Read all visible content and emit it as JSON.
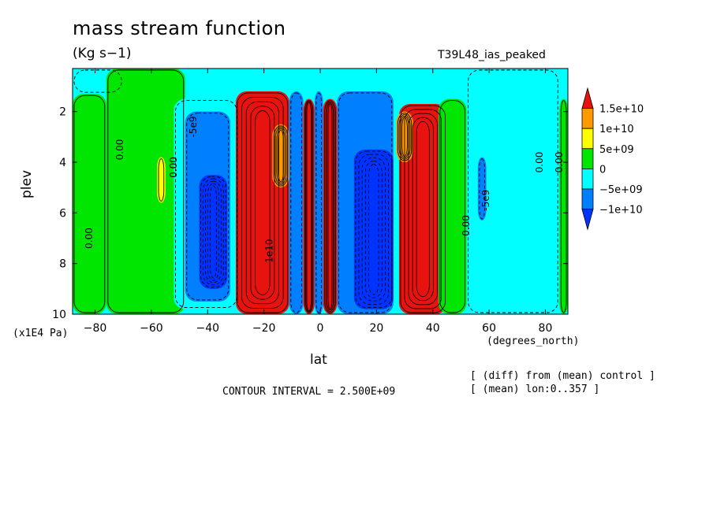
{
  "chart_data": {
    "type": "heatmap",
    "title": "mass stream function",
    "units": "(Kg s−1)",
    "experiment": "T39L48_ias_peaked",
    "xlabel": "lat",
    "x_units": "(degrees_north)",
    "ylabel": "plev",
    "y_units": "(x1E4 Pa)",
    "xlim": [
      -88,
      88
    ],
    "ylim": [
      10,
      0.3
    ],
    "y_inverted": true,
    "x_ticks": [
      -80,
      -60,
      -40,
      -20,
      0,
      20,
      40,
      60,
      80
    ],
    "x_tick_labels": [
      "−80",
      "−60",
      "−40",
      "−20",
      "0",
      "20",
      "40",
      "60",
      "80"
    ],
    "y_ticks": [
      2,
      4,
      6,
      8,
      10
    ],
    "contour_interval_text": "CONTOUR INTERVAL = 2.500E+09",
    "notes": [
      "[ (diff) from (mean) control ]",
      "[ (mean) lon:0..357 ]"
    ],
    "colorbar": {
      "labels": [
        "1.5e+10",
        "1e+10",
        "5e+09",
        "0",
        "−5e+09",
        "−1e+10"
      ],
      "colors": [
        "#e8130f",
        "#ff9900",
        "#ffff00",
        "#00e600",
        "#00ffff",
        "#0080ff",
        "#0033ff"
      ]
    },
    "contour_labels": [
      {
        "text": "0.00",
        "lat": -81,
        "plev": 7.0
      },
      {
        "text": "0.00",
        "lat": -70,
        "plev": 3.5
      },
      {
        "text": "0.00",
        "lat": -51,
        "plev": 4.2
      },
      {
        "text": "-5e9",
        "lat": -44,
        "plev": 2.6
      },
      {
        "text": "1e10",
        "lat": -17,
        "plev": 7.5
      },
      {
        "text": "0.00",
        "lat": 53,
        "plev": 6.5
      },
      {
        "text": "-5e9",
        "lat": 60,
        "plev": 5.5
      },
      {
        "text": "0.00",
        "lat": 79,
        "plev": 4.0
      },
      {
        "text": "0.00",
        "lat": 86,
        "plev": 4.0
      }
    ],
    "regions": [
      {
        "id": "green-sh-pole",
        "value": 2500000000.0,
        "color": "#00e600",
        "lat": [
          -88,
          -76
        ],
        "plev": [
          1.3,
          10
        ]
      },
      {
        "id": "cyan-sh-pole",
        "value": -2500000000.0,
        "color": "#00ffff",
        "lat": [
          -88,
          -70
        ],
        "plev": [
          0.3,
          1.3
        ]
      },
      {
        "id": "green-sh-mid",
        "value": 2500000000.0,
        "color": "#00e600",
        "lat": [
          -76,
          -48
        ],
        "plev": [
          0.3,
          10
        ]
      },
      {
        "id": "yellow-sh-blob",
        "value": 7500000000.0,
        "color": "#ffff00",
        "lat": [
          -58,
          -55
        ],
        "plev": [
          3.8,
          5.6
        ]
      },
      {
        "id": "cyan-sh-ferrel",
        "value": -2500000000.0,
        "color": "#00ffff",
        "lat": [
          -52,
          -29
        ],
        "plev": [
          1.5,
          9.8
        ]
      },
      {
        "id": "blue-sh-ferrel",
        "value": -7500000000.0,
        "color": "#0080ff",
        "lat": [
          -48,
          -32
        ],
        "plev": [
          2.0,
          9.5
        ]
      },
      {
        "id": "dkblue-sh-ferrel",
        "value": -12500000000.0,
        "color": "#0033ff",
        "lat": [
          -43,
          -33
        ],
        "plev": [
          4.5,
          9.0
        ]
      },
      {
        "id": "red-sh-hadley",
        "value": 12500000000.0,
        "color": "#e8130f",
        "lat": [
          -30,
          -11
        ],
        "plev": [
          1.2,
          10
        ]
      },
      {
        "id": "orange-sh-hadley",
        "value": 10000000000.0,
        "color": "#ff9900",
        "lat": [
          -17,
          -11
        ],
        "plev": [
          2.5,
          5.0
        ]
      },
      {
        "id": "blue-eq-1",
        "value": -7500000000.0,
        "color": "#0080ff",
        "lat": [
          -11,
          -6
        ],
        "plev": [
          1.2,
          10
        ]
      },
      {
        "id": "red-eq-1",
        "value": 12500000000.0,
        "color": "#e8130f",
        "lat": [
          -6,
          -2
        ],
        "plev": [
          1.5,
          10
        ]
      },
      {
        "id": "blue-eq-2",
        "value": -7500000000.0,
        "color": "#0080ff",
        "lat": [
          -2,
          1
        ],
        "plev": [
          1.2,
          10
        ]
      },
      {
        "id": "red-eq-2",
        "value": 12500000000.0,
        "color": "#e8130f",
        "lat": [
          1,
          6
        ],
        "plev": [
          1.5,
          10
        ]
      },
      {
        "id": "blue-nh-hadley",
        "value": -7500000000.0,
        "color": "#0080ff",
        "lat": [
          6,
          26
        ],
        "plev": [
          1.2,
          10
        ]
      },
      {
        "id": "dkblue-nh-hadley",
        "value": -12500000000.0,
        "color": "#0033ff",
        "lat": [
          12,
          26
        ],
        "plev": [
          3.5,
          9.8
        ]
      },
      {
        "id": "red-nh-ferrel",
        "value": 12500000000.0,
        "color": "#e8130f",
        "lat": [
          28,
          45
        ],
        "plev": [
          1.7,
          10
        ]
      },
      {
        "id": "orange-nh-ferrel",
        "value": 10000000000.0,
        "color": "#ff9900",
        "lat": [
          27,
          33
        ],
        "plev": [
          2.0,
          4.0
        ]
      },
      {
        "id": "green-nh-mid",
        "value": 2500000000.0,
        "color": "#00e600",
        "lat": [
          42,
          52
        ],
        "plev": [
          1.5,
          10
        ]
      },
      {
        "id": "cyan-nh-mid",
        "value": -2500000000.0,
        "color": "#00ffff",
        "lat": [
          52,
          85
        ],
        "plev": [
          0.3,
          10
        ]
      },
      {
        "id": "blue-nh-blob",
        "value": -7500000000.0,
        "color": "#0080ff",
        "lat": [
          56,
          59
        ],
        "plev": [
          3.8,
          6.3
        ]
      },
      {
        "id": "green-nh-pole",
        "value": 2500000000.0,
        "color": "#00e600",
        "lat": [
          85,
          88
        ],
        "plev": [
          1.5,
          10
        ]
      }
    ]
  }
}
